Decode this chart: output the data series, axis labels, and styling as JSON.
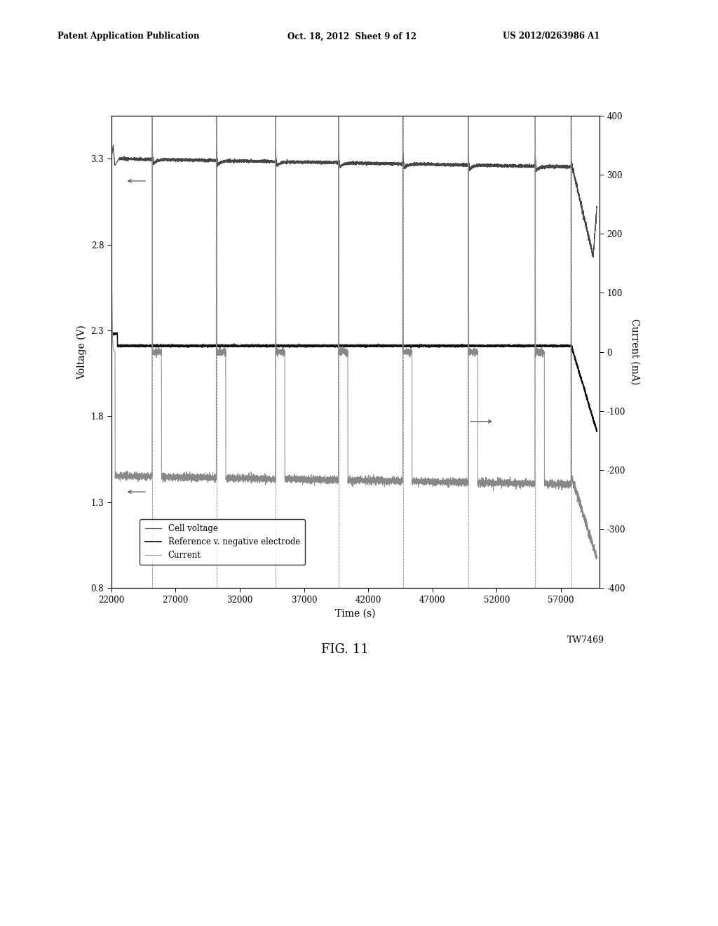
{
  "xlabel": "Time (s)",
  "ylabel_left": "Voltage (V)",
  "ylabel_right": "Current (mA)",
  "xlim": [
    22000,
    60000
  ],
  "ylim_left": [
    0.8,
    3.55
  ],
  "ylim_right": [
    -400,
    400
  ],
  "xticks": [
    22000,
    27000,
    32000,
    37000,
    42000,
    47000,
    52000,
    57000
  ],
  "yticks_left": [
    0.8,
    1.3,
    1.8,
    2.3,
    2.8,
    3.3
  ],
  "yticks_right": [
    -400,
    -300,
    -200,
    -100,
    0,
    100,
    200,
    300,
    400
  ],
  "fig_label": "FIG. 11",
  "watermark": "TW7469",
  "legend_entries": [
    "Cell voltage",
    "Reference v. negative electrode",
    "Current"
  ],
  "background_color": "#ffffff",
  "patent_left": "Patent Application Publication",
  "patent_mid": "Oct. 18, 2012  Sheet 9 of 12",
  "patent_right": "US 2012/0263986 A1",
  "vlines": [
    25200,
    30200,
    34800,
    39700,
    44700,
    49800,
    55000,
    57800
  ],
  "cell_voltage_base": 3.3,
  "ref_voltage_high": 2.28,
  "ref_voltage_low": 2.21,
  "current_base_ma": -210,
  "current_pulse_ma": 0,
  "current_spike_ma": 380
}
